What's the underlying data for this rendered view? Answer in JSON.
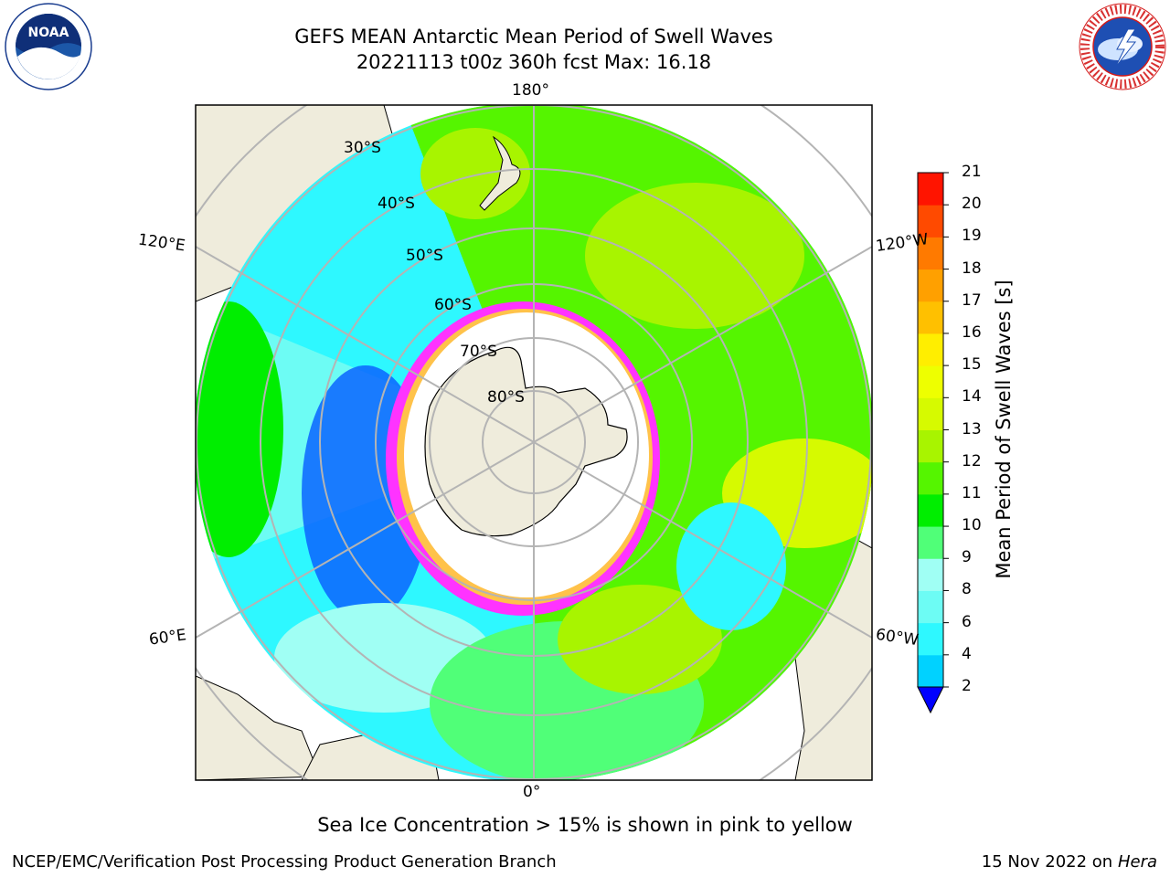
{
  "header": {
    "title_line1": "GEFS MEAN Antarctic Mean Period of Swell Waves",
    "title_line2": "20221113 t00z 360h fcst   Max: 16.18"
  },
  "logos": {
    "left": "NOAA",
    "left_ring_text": "NATIONAL OCEANIC AND ATMOSPHERIC ADMINISTRATION · U.S. DEPARTMENT OF COMMERCE",
    "right_ring_text": "NATIONAL WEATHER SERVICE"
  },
  "map": {
    "projection": "south-polar-stereographic",
    "longitude_labels": {
      "top": "180°",
      "bottom": "0°",
      "left_upper": "120°E",
      "left_lower": "60°E",
      "right_upper": "120°W",
      "right_lower": "60°W"
    },
    "latitude_labels": [
      "30°S",
      "40°S",
      "50°S",
      "60°S",
      "70°S",
      "80°S"
    ],
    "colors": {
      "land": "#efecdc",
      "graticule": "#b4b4b4",
      "sea_ice_low": "#ff33ff",
      "sea_ice_high": "#ffc24a"
    }
  },
  "colorbar": {
    "label": "Mean Period of Swell Waves [s]",
    "ticks": [
      "2",
      "4",
      "6",
      "8",
      "9",
      "10",
      "11",
      "12",
      "13",
      "14",
      "15",
      "16",
      "17",
      "18",
      "19",
      "20",
      "21"
    ],
    "colors": [
      "#0a64ff",
      "#00d2ff",
      "#2ef8ff",
      "#6dfcf4",
      "#a0fff4",
      "#50ff78",
      "#00ee00",
      "#55f500",
      "#a8f400",
      "#d6fa00",
      "#eeff00",
      "#ffee00",
      "#ffc000",
      "#ffa000",
      "#ff7a00",
      "#ff4a00",
      "#ff1400",
      "#ff0000"
    ],
    "under_color": "#0000ff"
  },
  "notes": {
    "sea_ice": "Sea Ice Concentration > 15% is shown in pink to yellow"
  },
  "footer": {
    "left": "NCEP/EMC/Verification Post Processing Product Generation Branch",
    "right_date": "15 Nov 2022 on",
    "right_host": "Hera"
  }
}
